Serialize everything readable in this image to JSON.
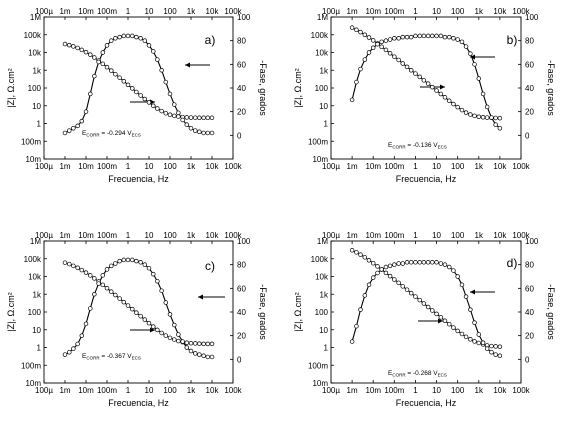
{
  "chart_data": [
    {
      "type": "scatter",
      "panel_label": "a)",
      "xlabel": "Frecuencia, Hz",
      "ylabel_left": "|Z|, Ω.cm²",
      "ylabel_right": "-Fase, grados",
      "x_scale": "log",
      "y_scale": "log",
      "xlim": [
        0.0001,
        100000
      ],
      "ylim": [
        0.01,
        1000000
      ],
      "ylim_right": [
        -20,
        100
      ],
      "x_ticks": [
        "100µ",
        "1m",
        "10m",
        "100m",
        "1",
        "10",
        "100",
        "1k",
        "10k",
        "100k"
      ],
      "y_ticks": [
        "10m",
        "100m",
        "1",
        "10",
        "100",
        "1k",
        "10k",
        "100k",
        "1M"
      ],
      "y_ticks_right": [
        "0",
        "20",
        "40",
        "60",
        "80",
        "100"
      ],
      "annotation": {
        "label": "E",
        "sub": "CORR",
        "text": " = -0.294 V",
        "sub2": "ECS"
      },
      "series": [
        {
          "freq": [
            0.001,
            0.0016,
            0.0025,
            0.004,
            0.0063,
            0.01,
            0.016,
            0.025,
            0.04,
            0.063,
            0.1,
            0.16,
            0.25,
            0.4,
            0.63,
            1,
            1.6,
            2.5,
            4,
            6.3,
            10,
            16,
            25,
            40,
            63,
            100,
            160,
            250,
            400,
            630,
            1000,
            1600,
            2500,
            4000,
            6300,
            10000
          ],
          "impedance": [
            30000,
            26000,
            22000,
            18000,
            14000,
            10500,
            7600,
            5200,
            3500,
            2300,
            1500,
            950,
            600,
            380,
            240,
            150,
            95,
            60,
            38,
            24,
            15.5,
            10,
            7,
            5,
            3.8,
            3.1,
            2.7,
            2.45,
            2.3,
            2.2,
            2.15,
            2.12,
            2.1,
            2.1,
            2.1,
            2.1
          ],
          "phase": [
            2,
            4,
            6,
            8,
            12,
            20,
            35,
            50,
            62,
            70,
            76,
            80,
            82,
            83,
            84,
            84,
            84,
            83,
            82,
            80,
            76,
            71,
            64,
            55,
            45,
            35,
            26,
            19,
            13,
            9,
            6,
            4,
            3,
            2,
            2,
            2
          ]
        }
      ]
    },
    {
      "type": "scatter",
      "panel_label": "b)",
      "xlabel": "Frecuencia, Hz",
      "ylabel_left": "|Z|, Ω.cm²",
      "ylabel_right": "-Fase, grados",
      "x_scale": "log",
      "y_scale": "log",
      "xlim": [
        0.0001,
        100000
      ],
      "ylim": [
        0.01,
        1000000
      ],
      "ylim_right": [
        -20,
        100
      ],
      "x_ticks": [
        "100µ",
        "1m",
        "10m",
        "100m",
        "1",
        "10",
        "100",
        "1k",
        "10k",
        "100k"
      ],
      "y_ticks": [
        "10m",
        "100m",
        "1",
        "10",
        "100",
        "1k",
        "10k",
        "100k",
        "1M"
      ],
      "y_ticks_right": [
        "0",
        "20",
        "40",
        "60",
        "80",
        "100"
      ],
      "annotation": {
        "label": "E",
        "sub": "CORR",
        "text": " = -0.136 V",
        "sub2": "ECS"
      },
      "series": [
        {
          "freq": [
            0.001,
            0.0016,
            0.0025,
            0.004,
            0.0063,
            0.01,
            0.016,
            0.025,
            0.04,
            0.063,
            0.1,
            0.16,
            0.25,
            0.4,
            0.63,
            1,
            1.6,
            2.5,
            4,
            6.3,
            10,
            16,
            25,
            40,
            63,
            100,
            160,
            250,
            400,
            630,
            1000,
            1600,
            2500,
            4000,
            6300,
            10000
          ],
          "impedance": [
            250000,
            190000,
            140000,
            100000,
            70000,
            48000,
            32000,
            21000,
            14000,
            9000,
            5800,
            3800,
            2400,
            1550,
            1000,
            650,
            420,
            270,
            175,
            112,
            72,
            46,
            30,
            19,
            12.5,
            8.3,
            5.7,
            4.1,
            3.2,
            2.7,
            2.4,
            2.25,
            2.15,
            2.1,
            2.05,
            2.0
          ],
          "phase": [
            30,
            45,
            56,
            64,
            70,
            74,
            77,
            79,
            80,
            81,
            82,
            82,
            83,
            83,
            83,
            84,
            84,
            84,
            84,
            84,
            84,
            84,
            83,
            83,
            82,
            81,
            79,
            75,
            69,
            60,
            48,
            35,
            24,
            15,
            9,
            6
          ]
        }
      ]
    },
    {
      "type": "scatter",
      "panel_label": "c)",
      "xlabel": "Frecuencia, Hz",
      "ylabel_left": "|Z|, Ω.cm²",
      "ylabel_right": "-Fase, grados",
      "x_scale": "log",
      "y_scale": "log",
      "xlim": [
        0.0001,
        100000
      ],
      "ylim": [
        0.01,
        1000000
      ],
      "ylim_right": [
        -20,
        100
      ],
      "x_ticks": [
        "100µ",
        "1m",
        "10m",
        "100m",
        "1",
        "10",
        "100",
        "1k",
        "10k",
        "100k"
      ],
      "y_ticks": [
        "10m",
        "100m",
        "1",
        "10",
        "100",
        "1k",
        "10k",
        "100k",
        "1M"
      ],
      "y_ticks_right": [
        "0",
        "20",
        "40",
        "60",
        "80",
        "100"
      ],
      "annotation": {
        "label": "E",
        "sub": "CORR",
        "text": " = -0.367 V",
        "sub2": "ECS"
      },
      "series": [
        {
          "freq": [
            0.001,
            0.0016,
            0.0025,
            0.004,
            0.0063,
            0.01,
            0.016,
            0.025,
            0.04,
            0.063,
            0.1,
            0.16,
            0.25,
            0.4,
            0.63,
            1,
            1.6,
            2.5,
            4,
            6.3,
            10,
            16,
            25,
            40,
            63,
            100,
            160,
            250,
            400,
            630,
            1000,
            1600,
            2500,
            4000,
            6300,
            10000
          ],
          "impedance": [
            60000,
            50000,
            40000,
            31000,
            23000,
            16500,
            11500,
            7800,
            5200,
            3400,
            2200,
            1400,
            900,
            570,
            360,
            230,
            145,
            92,
            58,
            37,
            23.5,
            15,
            9.8,
            6.6,
            4.7,
            3.5,
            2.8,
            2.3,
            2.0,
            1.85,
            1.75,
            1.7,
            1.65,
            1.6,
            1.6,
            1.6
          ],
          "phase": [
            4,
            6,
            9,
            13,
            20,
            30,
            43,
            55,
            64,
            71,
            76,
            79,
            81,
            83,
            84,
            84,
            84,
            83,
            82,
            80,
            77,
            72,
            66,
            58,
            48,
            38,
            29,
            21,
            15,
            10,
            7,
            5,
            4,
            3,
            2,
            2
          ]
        }
      ]
    },
    {
      "type": "scatter",
      "panel_label": "d)",
      "xlabel": "Frecuencia, Hz",
      "ylabel_left": "|Z|, Ω.cm²",
      "ylabel_right": "-Fase, grados",
      "x_scale": "log",
      "y_scale": "log",
      "xlim": [
        0.0001,
        100000
      ],
      "ylim": [
        0.01,
        1000000
      ],
      "ylim_right": [
        -20,
        100
      ],
      "x_ticks": [
        "100µ",
        "1m",
        "10m",
        "100m",
        "1",
        "10",
        "100",
        "1k",
        "10k",
        "100k"
      ],
      "y_ticks": [
        "10m",
        "100m",
        "1",
        "10",
        "100",
        "1k",
        "10k",
        "100k",
        "1M"
      ],
      "y_ticks_right": [
        "0",
        "20",
        "40",
        "60",
        "80",
        "100"
      ],
      "annotation": {
        "label": "E",
        "sub": "CORR",
        "text": " = -0.268 V",
        "sub2": "ECS"
      },
      "series": [
        {
          "freq": [
            0.001,
            0.0016,
            0.0025,
            0.004,
            0.0063,
            0.01,
            0.016,
            0.025,
            0.04,
            0.063,
            0.1,
            0.16,
            0.25,
            0.4,
            0.63,
            1,
            1.6,
            2.5,
            4,
            6.3,
            10,
            16,
            25,
            40,
            63,
            100,
            160,
            250,
            400,
            630,
            1000,
            1600,
            2500,
            4000,
            6300,
            10000
          ],
          "impedance": [
            300000,
            230000,
            170000,
            120000,
            82000,
            56000,
            37000,
            24500,
            16000,
            10500,
            6800,
            4400,
            2800,
            1800,
            1150,
            740,
            470,
            300,
            190,
            122,
            78,
            50,
            32,
            20.5,
            13.2,
            8.6,
            5.8,
            4.0,
            2.9,
            2.2,
            1.8,
            1.5,
            1.3,
            1.2,
            1.15,
            1.1
          ],
          "phase": [
            15,
            28,
            42,
            54,
            63,
            69,
            73,
            76,
            78,
            79,
            80,
            81,
            81,
            82,
            82,
            82,
            82,
            82,
            82,
            82,
            82,
            81,
            80,
            78,
            75,
            70,
            63,
            53,
            42,
            31,
            21,
            14,
            9,
            6,
            4,
            3
          ]
        }
      ]
    }
  ]
}
